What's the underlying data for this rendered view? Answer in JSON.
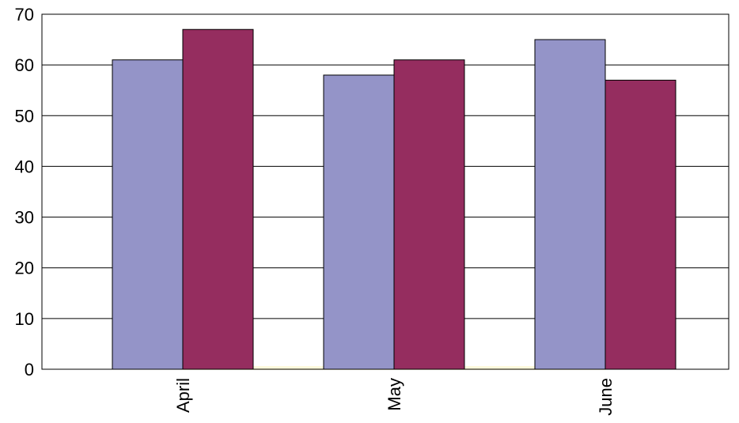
{
  "chart_data": {
    "type": "bar",
    "categories": [
      "April",
      "May",
      "June"
    ],
    "series": [
      {
        "values": [
          61,
          58,
          65
        ]
      },
      {
        "values": [
          67,
          61,
          57
        ]
      }
    ],
    "title": "",
    "xlabel": "",
    "ylabel": "",
    "ylim": [
      0,
      70
    ],
    "yticks": [
      "0",
      "10",
      "20",
      "30",
      "40",
      "50",
      "60",
      "70"
    ],
    "grid": true,
    "legend": "none"
  },
  "colors": {
    "series_1": "#9494c8",
    "series_2": "#952d5f",
    "grid": "#000000",
    "floor": "#fffadc"
  }
}
